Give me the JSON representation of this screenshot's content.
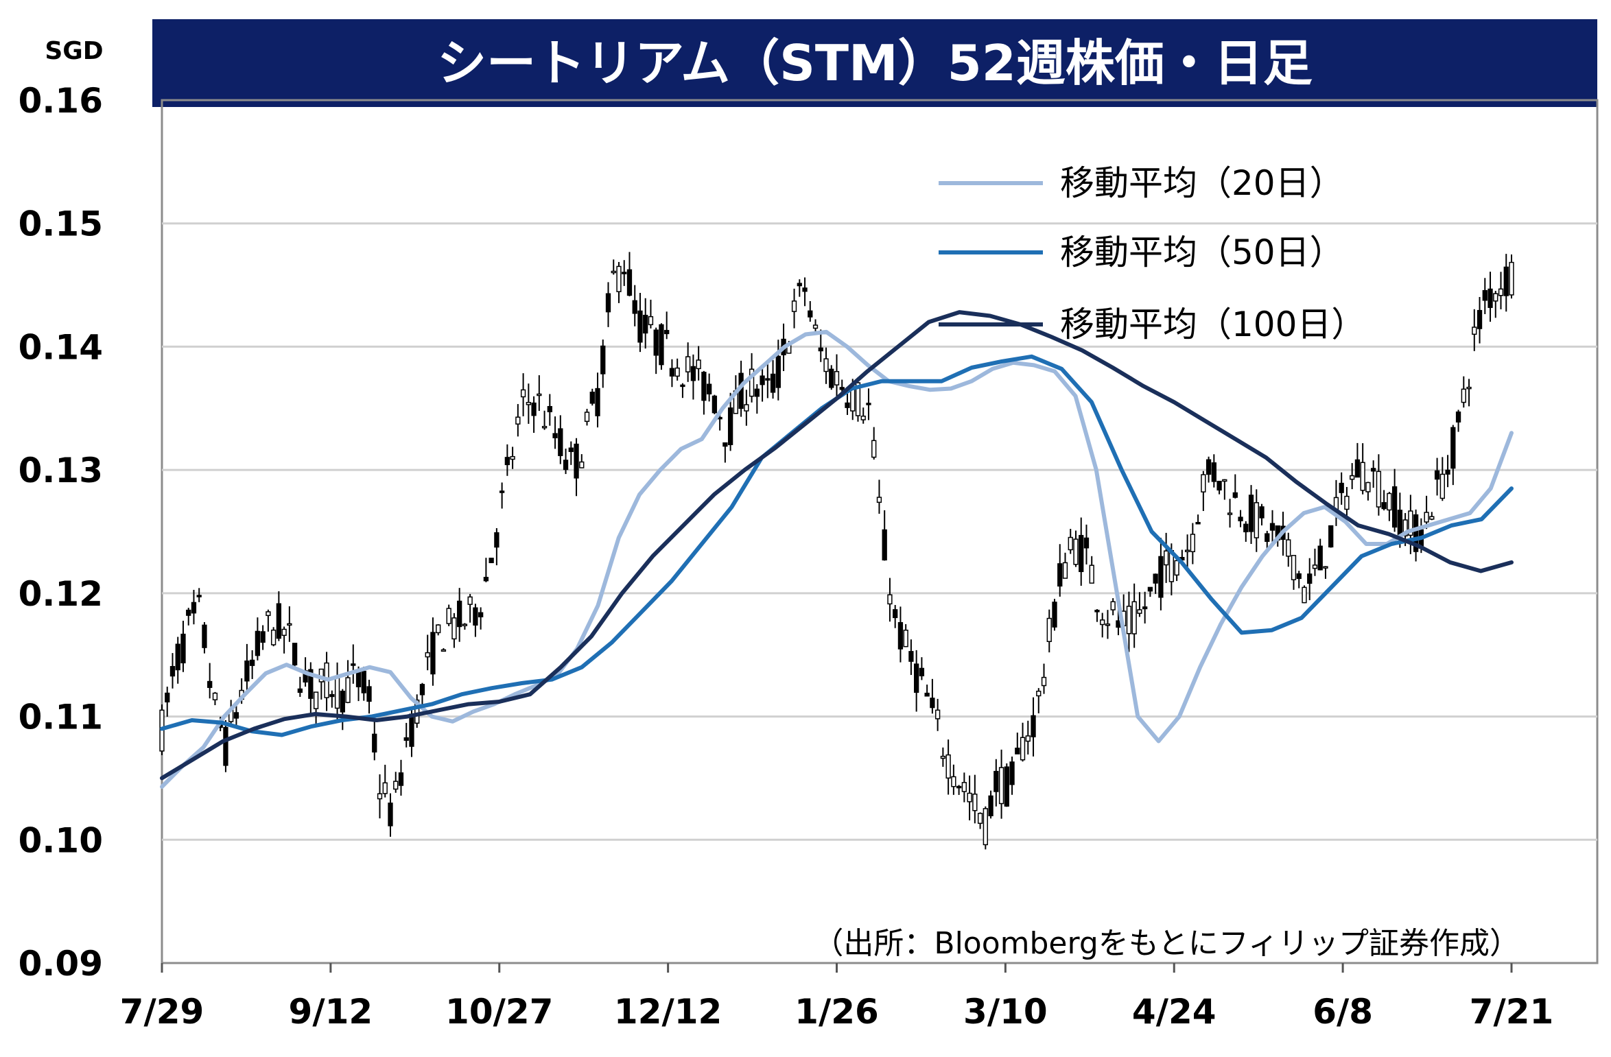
{
  "chart_data": {
    "type": "candlestick",
    "title": "シートリアム（STM）52週株価・日足",
    "unit_label": "SGD",
    "ylim": [
      0.09,
      0.16
    ],
    "yticks": [
      "0.16",
      "0.15",
      "0.14",
      "0.13",
      "0.12",
      "0.11",
      "0.10",
      "0.09"
    ],
    "xticks": [
      "7/29",
      "9/12",
      "10/27",
      "12/12",
      "1/26",
      "3/10",
      "4/24",
      "6/8",
      "7/21"
    ],
    "grid": true,
    "legend_position": "top-right",
    "source": "（出所：Bloombergをもとにフィリップ証券作成）",
    "series": [
      {
        "name": "移動平均（20日）",
        "color": "#9db8dc",
        "values": [
          0.1043,
          0.106,
          0.1075,
          0.11,
          0.1118,
          0.1135,
          0.1142,
          0.1135,
          0.113,
          0.1135,
          0.114,
          0.1136,
          0.1115,
          0.11,
          0.1096,
          0.1104,
          0.111,
          0.1118,
          0.1125,
          0.1133,
          0.1155,
          0.119,
          0.1245,
          0.128,
          0.13,
          0.1317,
          0.1325,
          0.135,
          0.137,
          0.1385,
          0.14,
          0.141,
          0.1412,
          0.14,
          0.1385,
          0.1372,
          0.1368,
          0.1365,
          0.1366,
          0.1372,
          0.1382,
          0.1387,
          0.1385,
          0.138,
          0.136,
          0.13,
          0.12,
          0.11,
          0.108,
          0.11,
          0.114,
          0.1175,
          0.1205,
          0.123,
          0.125,
          0.1265,
          0.127,
          0.1258,
          0.124,
          0.124,
          0.125,
          0.1255,
          0.126,
          0.1265,
          0.1285,
          0.133
        ]
      },
      {
        "name": "移動平均（50日）",
        "color": "#1f6fb4",
        "values": [
          0.109,
          0.1097,
          0.1095,
          0.1088,
          0.1085,
          0.1092,
          0.1097,
          0.11,
          0.1105,
          0.111,
          0.1118,
          0.1123,
          0.1127,
          0.113,
          0.114,
          0.116,
          0.1185,
          0.121,
          0.124,
          0.127,
          0.131,
          0.133,
          0.135,
          0.1366,
          0.1372,
          0.1372,
          0.1372,
          0.1383,
          0.1388,
          0.1392,
          0.1382,
          0.1355,
          0.13,
          0.125,
          0.1225,
          0.1195,
          0.1168,
          0.117,
          0.118,
          0.1205,
          0.123,
          0.124,
          0.1245,
          0.1255,
          0.126,
          0.1285
        ]
      },
      {
        "name": "移動平均（100日）",
        "color": "#1a2f5a",
        "values": [
          0.105,
          0.1065,
          0.108,
          0.109,
          0.1098,
          0.1102,
          0.11,
          0.1097,
          0.11,
          0.1105,
          0.111,
          0.1112,
          0.1118,
          0.114,
          0.1165,
          0.12,
          0.123,
          0.1255,
          0.128,
          0.13,
          0.1318,
          0.1338,
          0.1358,
          0.138,
          0.14,
          0.142,
          0.1428,
          0.1425,
          0.1418,
          0.1408,
          0.1397,
          0.1383,
          0.1368,
          0.1355,
          0.134,
          0.1325,
          0.131,
          0.129,
          0.1272,
          0.1255,
          0.1248,
          0.1238,
          0.1225,
          0.1218,
          0.1225
        ]
      }
    ],
    "price_path": [
      0.109,
      0.114,
      0.117,
      0.1185,
      0.111,
      0.1075,
      0.1115,
      0.114,
      0.117,
      0.1175,
      0.116,
      0.113,
      0.112,
      0.1128,
      0.112,
      0.113,
      0.112,
      0.104,
      0.102,
      0.108,
      0.111,
      0.115,
      0.117,
      0.1175,
      0.118,
      0.12,
      0.125,
      0.13,
      0.135,
      0.136,
      0.134,
      0.132,
      0.13,
      0.133,
      0.1365,
      0.145,
      0.147,
      0.142,
      0.141,
      0.14,
      0.139,
      0.138,
      0.137,
      0.136,
      0.133,
      0.136,
      0.137,
      0.136,
      0.138,
      0.142,
      0.145,
      0.14,
      0.138,
      0.137,
      0.136,
      0.135,
      0.125,
      0.118,
      0.115,
      0.113,
      0.11,
      0.107,
      0.105,
      0.103,
      0.101,
      0.105,
      0.104,
      0.108,
      0.11,
      0.116,
      0.122,
      0.124,
      0.123,
      0.119,
      0.118,
      0.117,
      0.118,
      0.12,
      0.122,
      0.123,
      0.124,
      0.129,
      0.13,
      0.128,
      0.127,
      0.126,
      0.125,
      0.124,
      0.123,
      0.12,
      0.122,
      0.125,
      0.128,
      0.13,
      0.13,
      0.128,
      0.127,
      0.125,
      0.125,
      0.128,
      0.13,
      0.134,
      0.14,
      0.144,
      0.145,
      0.146
    ]
  }
}
